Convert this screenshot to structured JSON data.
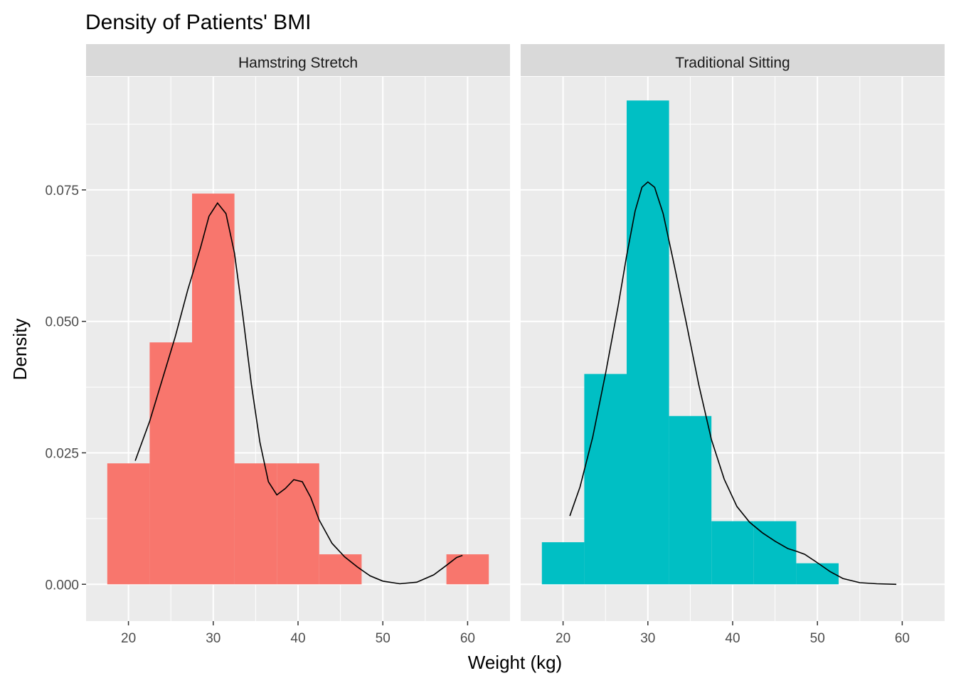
{
  "chart_data": {
    "type": "histogram-density-facets",
    "title": "Density of Patients' BMI",
    "xlabel": "Weight (kg)",
    "ylabel": "Density",
    "xlim": [
      15,
      65
    ],
    "ylim": [
      -0.007,
      0.0965
    ],
    "x_ticks": [
      20,
      30,
      40,
      50,
      60
    ],
    "x_minor": [
      25,
      35,
      45,
      55
    ],
    "y_ticks": [
      0.0,
      0.025,
      0.05,
      0.075
    ],
    "y_tick_labels": [
      "0.000",
      "0.025",
      "0.050",
      "0.075"
    ],
    "y_minor": [
      0.0125,
      0.0375,
      0.0625,
      0.0875
    ],
    "grid": true,
    "legend": "none",
    "bin_width": 5,
    "colors": {
      "panel_bg": "#EBEBEB",
      "strip_bg": "#D9D9D9",
      "grid": "#FFFFFF",
      "density_line": "#000000"
    },
    "facets": [
      {
        "name": "Hamstring Stretch",
        "color": "#F8766D",
        "bins": [
          {
            "x0": 17.5,
            "x1": 22.5,
            "density": 0.023
          },
          {
            "x0": 22.5,
            "x1": 27.5,
            "density": 0.046
          },
          {
            "x0": 27.5,
            "x1": 32.5,
            "density": 0.0743
          },
          {
            "x0": 32.5,
            "x1": 37.5,
            "density": 0.023
          },
          {
            "x0": 37.5,
            "x1": 42.5,
            "density": 0.023
          },
          {
            "x0": 42.5,
            "x1": 47.5,
            "density": 0.0057
          },
          {
            "x0": 47.5,
            "x1": 52.5,
            "density": 0
          },
          {
            "x0": 52.5,
            "x1": 57.5,
            "density": 0
          },
          {
            "x0": 57.5,
            "x1": 62.5,
            "density": 0.0057
          }
        ],
        "density_curve": [
          [
            20.8,
            0.0235
          ],
          [
            22.5,
            0.031
          ],
          [
            24,
            0.039
          ],
          [
            25.5,
            0.047
          ],
          [
            27,
            0.056
          ],
          [
            28.5,
            0.064
          ],
          [
            29.5,
            0.07
          ],
          [
            30.5,
            0.0725
          ],
          [
            31.5,
            0.0705
          ],
          [
            32.5,
            0.063
          ],
          [
            33.5,
            0.051
          ],
          [
            34.5,
            0.038
          ],
          [
            35.5,
            0.027
          ],
          [
            36.5,
            0.0195
          ],
          [
            37.5,
            0.017
          ],
          [
            38.5,
            0.0182
          ],
          [
            39.5,
            0.0199
          ],
          [
            40.5,
            0.0195
          ],
          [
            41.5,
            0.0165
          ],
          [
            42.5,
            0.0122
          ],
          [
            44,
            0.0078
          ],
          [
            45.5,
            0.0052
          ],
          [
            47,
            0.0033
          ],
          [
            48.5,
            0.0016
          ],
          [
            50,
            0.0006
          ],
          [
            52,
            0.0001
          ],
          [
            54,
            0.0004
          ],
          [
            56,
            0.0018
          ],
          [
            57.5,
            0.0036
          ],
          [
            58.7,
            0.0051
          ],
          [
            59.4,
            0.0055
          ]
        ]
      },
      {
        "name": "Traditional Sitting",
        "color": "#00BFC4",
        "bins": [
          {
            "x0": 17.5,
            "x1": 22.5,
            "density": 0.008
          },
          {
            "x0": 22.5,
            "x1": 27.5,
            "density": 0.04
          },
          {
            "x0": 27.5,
            "x1": 32.5,
            "density": 0.092
          },
          {
            "x0": 32.5,
            "x1": 37.5,
            "density": 0.032
          },
          {
            "x0": 37.5,
            "x1": 42.5,
            "density": 0.012
          },
          {
            "x0": 42.5,
            "x1": 47.5,
            "density": 0.012
          },
          {
            "x0": 47.5,
            "x1": 52.5,
            "density": 0.004
          }
        ],
        "density_curve": [
          [
            20.8,
            0.013
          ],
          [
            22,
            0.0185
          ],
          [
            23.5,
            0.028
          ],
          [
            25,
            0.04
          ],
          [
            26.5,
            0.053
          ],
          [
            27.5,
            0.0625
          ],
          [
            28.5,
            0.071
          ],
          [
            29.3,
            0.0755
          ],
          [
            30,
            0.0765
          ],
          [
            30.8,
            0.0755
          ],
          [
            31.8,
            0.0705
          ],
          [
            33,
            0.0615
          ],
          [
            34.5,
            0.05
          ],
          [
            36,
            0.038
          ],
          [
            37.5,
            0.0275
          ],
          [
            39,
            0.02
          ],
          [
            40.5,
            0.0148
          ],
          [
            42,
            0.0118
          ],
          [
            43.5,
            0.0098
          ],
          [
            45,
            0.0082
          ],
          [
            46.5,
            0.0068
          ],
          [
            47.5,
            0.0063
          ],
          [
            48.5,
            0.0057
          ],
          [
            50,
            0.0041
          ],
          [
            51.5,
            0.0024
          ],
          [
            53,
            0.0011
          ],
          [
            55,
            0.0003
          ],
          [
            57,
            0.0001
          ],
          [
            59.3,
            0.0
          ]
        ]
      }
    ]
  }
}
